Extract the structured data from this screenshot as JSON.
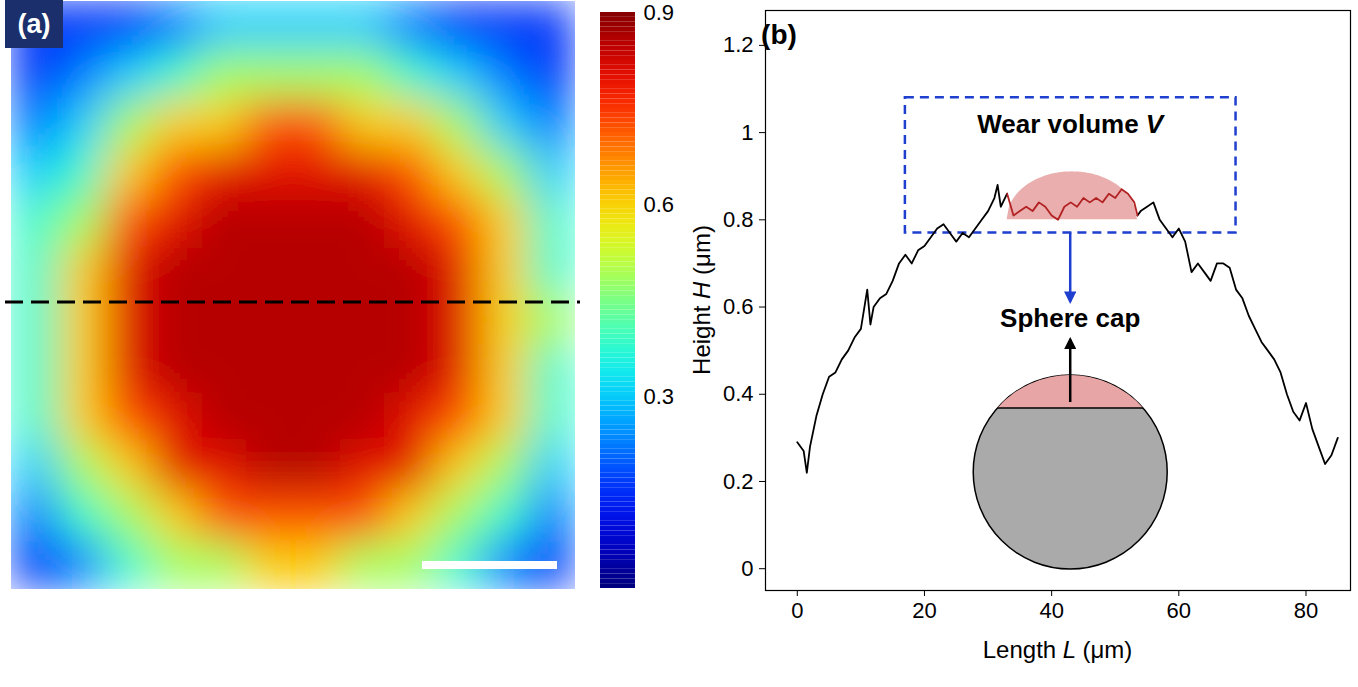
{
  "chart_data": [
    {
      "type": "heatmap",
      "label": "(a)",
      "tick_labels": false,
      "cells": [
        [
          0.15,
          0.15,
          0.15,
          0.22,
          0.3,
          0.3,
          0.3,
          0.3,
          0.22,
          0.15,
          0.15,
          0.15
        ],
        [
          0.15,
          0.22,
          0.3,
          0.38,
          0.48,
          0.48,
          0.48,
          0.48,
          0.38,
          0.3,
          0.22,
          0.15
        ],
        [
          0.22,
          0.3,
          0.48,
          0.6,
          0.6,
          0.72,
          0.72,
          0.6,
          0.6,
          0.48,
          0.3,
          0.22
        ],
        [
          0.3,
          0.38,
          0.6,
          0.72,
          0.8,
          0.8,
          0.8,
          0.8,
          0.72,
          0.6,
          0.48,
          0.3
        ],
        [
          0.38,
          0.48,
          0.72,
          0.8,
          0.85,
          0.85,
          0.85,
          0.85,
          0.8,
          0.72,
          0.6,
          0.38
        ],
        [
          0.38,
          0.6,
          0.8,
          0.85,
          0.85,
          0.85,
          0.85,
          0.85,
          0.85,
          0.8,
          0.6,
          0.38
        ],
        [
          0.38,
          0.6,
          0.8,
          0.85,
          0.85,
          0.85,
          0.85,
          0.85,
          0.85,
          0.8,
          0.6,
          0.48
        ],
        [
          0.38,
          0.6,
          0.8,
          0.85,
          0.85,
          0.85,
          0.85,
          0.85,
          0.85,
          0.8,
          0.6,
          0.38
        ],
        [
          0.38,
          0.6,
          0.72,
          0.8,
          0.85,
          0.85,
          0.85,
          0.85,
          0.8,
          0.72,
          0.6,
          0.38
        ],
        [
          0.3,
          0.48,
          0.6,
          0.8,
          0.8,
          0.85,
          0.85,
          0.8,
          0.8,
          0.6,
          0.48,
          0.3
        ],
        [
          0.22,
          0.38,
          0.48,
          0.6,
          0.72,
          0.72,
          0.72,
          0.72,
          0.6,
          0.48,
          0.38,
          0.22
        ],
        [
          0.15,
          0.22,
          0.38,
          0.48,
          0.48,
          0.6,
          0.6,
          0.48,
          0.48,
          0.38,
          0.22,
          0.15
        ]
      ],
      "colorbar": {
        "range": [
          0,
          0.9
        ],
        "ticks": [
          0.3,
          0.6,
          0.9
        ]
      }
    },
    {
      "type": "line",
      "label": "(b)",
      "xlabel": "Length L (μm)",
      "ylabel": "Height H (μm)",
      "xlim": [
        -5,
        87
      ],
      "ylim": [
        -0.05,
        1.28
      ],
      "xticks": [
        0,
        20,
        40,
        60,
        80
      ],
      "yticks": [
        0,
        0.2,
        0.4,
        0.6,
        0.8,
        1,
        1.2
      ],
      "series": [
        {
          "color": "#000000",
          "x": [
            0,
            1,
            1.5,
            2,
            3,
            4,
            5,
            6,
            7,
            8,
            9,
            10,
            11,
            11.5,
            12,
            13,
            14,
            15,
            16,
            17,
            18,
            19,
            20,
            21,
            22,
            23,
            24,
            25,
            26,
            27,
            28,
            29,
            30,
            31,
            31.5,
            32,
            33,
            43,
            53.5,
            54,
            55,
            56,
            57,
            58,
            59,
            60,
            61,
            62,
            63,
            64,
            65,
            66,
            67,
            68,
            69,
            70,
            71,
            72,
            73,
            74,
            75,
            76,
            77,
            78,
            79,
            80,
            81,
            82,
            83,
            84,
            85
          ],
          "values": [
            0.29,
            0.27,
            0.22,
            0.28,
            0.35,
            0.4,
            0.44,
            0.45,
            0.48,
            0.5,
            0.53,
            0.55,
            0.64,
            0.56,
            0.6,
            0.62,
            0.63,
            0.66,
            0.7,
            0.72,
            0.7,
            0.73,
            0.74,
            0.76,
            0.78,
            0.79,
            0.77,
            0.75,
            0.77,
            0.76,
            0.78,
            0.8,
            0.82,
            0.85,
            0.88,
            0.83,
            0.86,
            null,
            0.81,
            0.82,
            0.83,
            0.84,
            0.8,
            0.78,
            0.76,
            0.78,
            0.75,
            0.68,
            0.7,
            0.68,
            0.66,
            0.7,
            0.7,
            0.69,
            0.64,
            0.62,
            0.58,
            0.55,
            0.52,
            0.5,
            0.48,
            0.45,
            0.4,
            0.36,
            0.34,
            0.38,
            0.32,
            0.28,
            0.24,
            0.26,
            0.3
          ]
        },
        {
          "color": "#b22222",
          "x": [
            33,
            34,
            35,
            36,
            37,
            38,
            39,
            40,
            41,
            42,
            43,
            44,
            45,
            46,
            47,
            48,
            49,
            50,
            51,
            52,
            53,
            53.5
          ],
          "values": [
            0.86,
            0.81,
            0.82,
            0.83,
            0.82,
            0.84,
            0.83,
            0.81,
            0.8,
            0.83,
            0.84,
            0.83,
            0.85,
            0.84,
            0.85,
            0.84,
            0.86,
            0.85,
            0.87,
            0.86,
            0.84,
            0.81
          ]
        }
      ],
      "sphere_cap": {
        "x": [
          33,
          53.5
        ],
        "y": [
          0.8,
          0.91
        ]
      },
      "annotations": [
        {
          "text": "Wear volume V",
          "box_x": [
            17,
            69
          ],
          "box_y": [
            0.77,
            1.08
          ]
        },
        {
          "text": "Sphere cap"
        }
      ]
    }
  ]
}
